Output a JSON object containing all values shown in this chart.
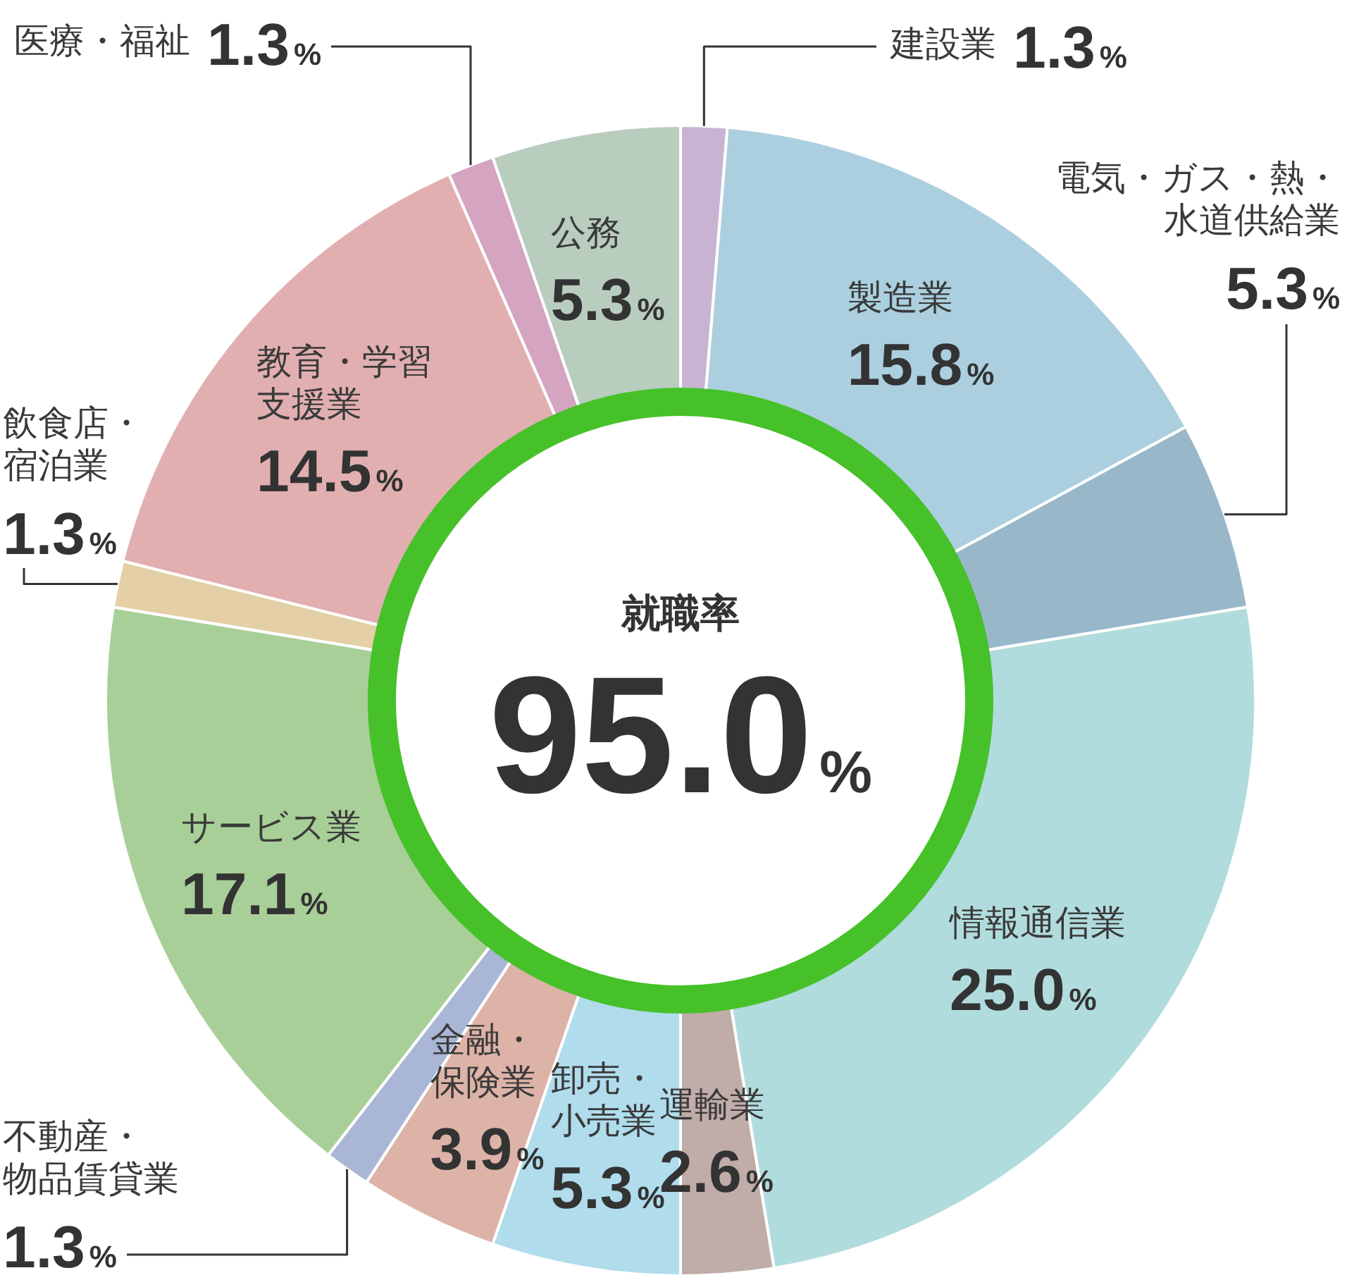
{
  "chart_data": {
    "type": "donut",
    "categories": [
      "建設業",
      "製造業",
      "電気・ガス・熱・水道供給業",
      "情報通信業",
      "運輸業",
      "卸売・小売業",
      "金融・保険業",
      "不動産・物品賃貸業",
      "サービス業",
      "飲食店・宿泊業",
      "教育・学習支援業",
      "医療・福祉",
      "公務"
    ],
    "values": [
      1.3,
      15.8,
      5.3,
      25.0,
      2.6,
      5.3,
      3.9,
      1.3,
      17.1,
      1.3,
      14.5,
      1.3,
      5.3
    ],
    "colors": [
      "#c9b3d3",
      "#abcfdf",
      "#98b8ca",
      "#b1dcdd",
      "#c0aca8",
      "#b0dcec",
      "#ddb3a7",
      "#a9b6d6",
      "#a8cf98",
      "#e4cfa6",
      "#e2afb1",
      "#d4a4c1",
      "#b9cdbf"
    ],
    "value_labels": [
      "1.3%",
      "15.8%",
      "5.3%",
      "25.0%",
      "2.6%",
      "5.3%",
      "3.9%",
      "1.3%",
      "17.1%",
      "1.3%",
      "14.5%",
      "1.3%",
      "5.3%"
    ],
    "annotations": [
      "就職率",
      "95.0%"
    ]
  }
}
